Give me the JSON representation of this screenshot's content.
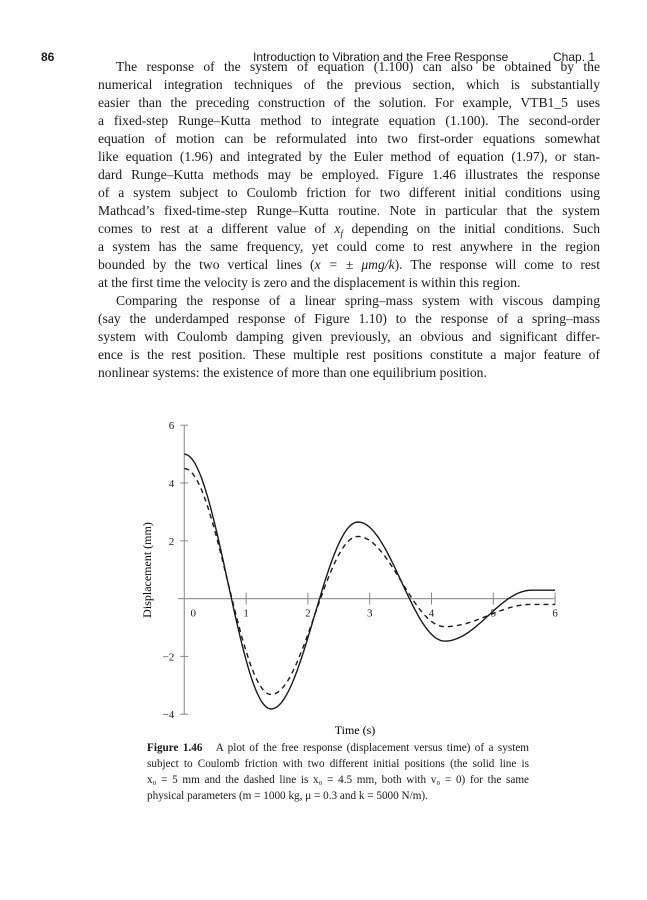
{
  "header": {
    "page_number": "86",
    "running_title": "Introduction to Vibration and the Free Response",
    "chapter": "Chap. 1"
  },
  "body": {
    "lines": [
      "The response of the system of equation (1.100) can also be obtained by the",
      "numerical integration techniques of the previous section, which is substantially",
      "easier than the preceding construction of the solution. For example, VTB1_5 uses",
      "a fixed-step Runge–Kutta method to integrate equation (1.100). The second-order",
      "equation of motion can be reformulated into two first-order equations somewhat",
      "like equation (1.96) and integrated by the Euler method of equation (1.97), or stan-",
      "dard Runge–Kutta methods may be employed. Figure 1.46 illustrates the response",
      "of a system subject to Coulomb friction for two different initial conditions using",
      "Mathcad’s fixed-time-step Runge–Kutta routine. Note in particular that the system",
      "",
      "a system has the same frequency, yet could come to rest anywhere in the region",
      "",
      "at the first time the velocity is zero and the displacement is within this region.",
      "Comparing the response of a linear spring–mass system with viscous damping",
      "(say the underdamped response of Figure 1.10) to the response of a spring–mass",
      "system with Coulomb damping given previously, an obvious and significant differ-",
      "ence is the rest position. These multiple rest positions constitute a major feature of",
      "nonlinear systems: the existence of more than one equilibrium position."
    ],
    "line10": {
      "a": "comes to rest at a different value of ",
      "var": "x",
      "sub": "f",
      "b": " depending on the initial conditions. Such"
    },
    "line12": {
      "a": "bounded by the two vertical lines (",
      "math": "x = ± μmg/k",
      "b": "). The response will come to rest"
    }
  },
  "figure": {
    "label": "Figure 1.46",
    "caption_lines": [
      "A plot of the free response (displacement versus time) of a system",
      "subject to Coulomb friction with two different initial positions (the solid line is",
      "x₀ = 5 mm and the dashed line is x₀ = 4.5 mm, both with v₀ = 0) for the same",
      "physical parameters (m = 1000 kg, μ = 0.3 and k = 5000 N/m)."
    ]
  },
  "chart_data": {
    "type": "line",
    "xlabel": "Time (s)",
    "ylabel": "Displacement (mm)",
    "xlim": [
      0,
      6
    ],
    "ylim": [
      -4,
      6
    ],
    "xticks": [
      "0",
      "1",
      "2",
      "3",
      "4",
      "5",
      "6"
    ],
    "yticks": [
      "−4",
      "−2",
      "2",
      "4",
      "6"
    ],
    "ytick_values": [
      -4,
      -2,
      2,
      4,
      6
    ],
    "grid": false,
    "interpolation": "half-cosine between extrema",
    "series": [
      {
        "style": "solid",
        "color": "#1a1a1a",
        "points": [
          [
            0,
            5
          ],
          [
            1.405,
            -3.82
          ],
          [
            2.81,
            2.65
          ],
          [
            4.215,
            -1.47
          ],
          [
            5.62,
            0.29
          ],
          [
            6,
            0.29
          ]
        ]
      },
      {
        "style": "dashed",
        "color": "#1a1a1a",
        "points": [
          [
            0,
            4.5
          ],
          [
            1.405,
            -3.32
          ],
          [
            2.81,
            2.15
          ],
          [
            4.215,
            -0.97
          ],
          [
            5.62,
            -0.2
          ],
          [
            6,
            -0.2
          ]
        ]
      }
    ]
  }
}
